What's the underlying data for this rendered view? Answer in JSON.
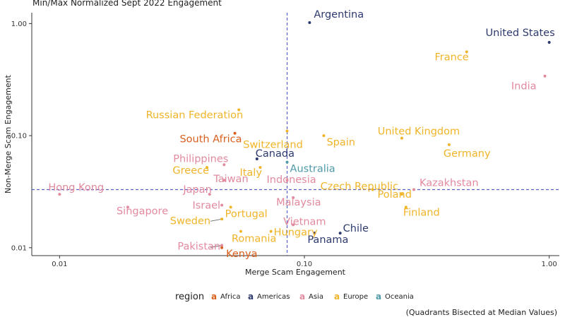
{
  "chart_data": {
    "type": "scatter",
    "title": "Min/Max Normalized Sept 2022 Engagement",
    "xlabel": "Merge Scam Engagement",
    "ylabel": "Non-Merge Scam Engagement",
    "x_scale": "log",
    "y_scale": "log",
    "xlim": [
      0.0077,
      1.1
    ],
    "ylim": [
      0.0085,
      1.25
    ],
    "x_ticks": [
      {
        "value": 0.01,
        "label": "0.01"
      },
      {
        "value": 0.1,
        "label": "0.10"
      },
      {
        "value": 1.0,
        "label": "1.00"
      }
    ],
    "y_ticks": [
      {
        "value": 0.01,
        "label": "0.01"
      },
      {
        "value": 0.1,
        "label": "0.10"
      },
      {
        "value": 1.0,
        "label": "1.00"
      }
    ],
    "median_x": 0.085,
    "median_y": 0.033,
    "grid": false,
    "legend": {
      "title": "region",
      "position": "bottom",
      "items": [
        {
          "name": "Africa",
          "color": "#d95f1d"
        },
        {
          "name": "Americas",
          "color": "#2e3a6e"
        },
        {
          "name": "Asia",
          "color": "#e28a9e"
        },
        {
          "name": "Europe",
          "color": "#f0b429"
        },
        {
          "name": "Oceania",
          "color": "#4f9aa8"
        }
      ]
    },
    "caption": "(Quadrants Bisected at Median Values)",
    "points": [
      {
        "label": "Argentina",
        "region": "Americas",
        "x": 0.105,
        "y": 1.02
      },
      {
        "label": "United States",
        "region": "Americas",
        "x": 1.0,
        "y": 0.68
      },
      {
        "label": "France",
        "region": "Europe",
        "x": 0.46,
        "y": 0.56
      },
      {
        "label": "India",
        "region": "Asia",
        "x": 0.96,
        "y": 0.34
      },
      {
        "label": "Russian Federation",
        "region": "Europe",
        "x": 0.054,
        "y": 0.17
      },
      {
        "label": "Switzerland",
        "region": "Europe",
        "x": 0.085,
        "y": 0.11
      },
      {
        "label": "South Africa",
        "region": "Africa",
        "x": 0.052,
        "y": 0.105
      },
      {
        "label": "United Kingdom",
        "region": "Europe",
        "x": 0.25,
        "y": 0.095
      },
      {
        "label": "Spain",
        "region": "Europe",
        "x": 0.12,
        "y": 0.1
      },
      {
        "label": "Germany",
        "region": "Europe",
        "x": 0.39,
        "y": 0.083
      },
      {
        "label": "Canada",
        "region": "Americas",
        "x": 0.064,
        "y": 0.062
      },
      {
        "label": "Philippines",
        "region": "Asia",
        "x": 0.047,
        "y": 0.055
      },
      {
        "label": "Italy",
        "region": "Europe",
        "x": 0.066,
        "y": 0.052
      },
      {
        "label": "Australia",
        "region": "Oceania",
        "x": 0.085,
        "y": 0.058
      },
      {
        "label": "Greece",
        "region": "Europe",
        "x": 0.04,
        "y": 0.052
      },
      {
        "label": "Taiwan",
        "region": "Asia",
        "x": 0.047,
        "y": 0.04
      },
      {
        "label": "Hong Kong",
        "region": "Asia",
        "x": 0.01,
        "y": 0.03
      },
      {
        "label": "Indonesia",
        "region": "Asia",
        "x": 0.085,
        "y": 0.04
      },
      {
        "label": "Czech Republic",
        "region": "Europe",
        "x": 0.19,
        "y": 0.033
      },
      {
        "label": "Kazakhstan",
        "region": "Asia",
        "x": 0.28,
        "y": 0.033
      },
      {
        "label": "Japan",
        "region": "Asia",
        "x": 0.041,
        "y": 0.03
      },
      {
        "label": "Malaysia",
        "region": "Asia",
        "x": 0.09,
        "y": 0.028
      },
      {
        "label": "Poland",
        "region": "Europe",
        "x": 0.25,
        "y": 0.03
      },
      {
        "label": "Singapore",
        "region": "Asia",
        "x": 0.019,
        "y": 0.023
      },
      {
        "label": "Israel",
        "region": "Asia",
        "x": 0.046,
        "y": 0.024
      },
      {
        "label": "Portugal",
        "region": "Europe",
        "x": 0.05,
        "y": 0.023
      },
      {
        "label": "Finland",
        "region": "Europe",
        "x": 0.26,
        "y": 0.023
      },
      {
        "label": "Sweden",
        "region": "Europe",
        "x": 0.046,
        "y": 0.018
      },
      {
        "label": "Vietnam",
        "region": "Asia",
        "x": 0.09,
        "y": 0.016
      },
      {
        "label": "Chile",
        "region": "Americas",
        "x": 0.14,
        "y": 0.0135
      },
      {
        "label": "Hungary",
        "region": "Europe",
        "x": 0.073,
        "y": 0.014
      },
      {
        "label": "Romania",
        "region": "Europe",
        "x": 0.055,
        "y": 0.014
      },
      {
        "label": "Panama",
        "region": "Americas",
        "x": 0.11,
        "y": 0.0135
      },
      {
        "label": "Pakistan",
        "region": "Asia",
        "x": 0.046,
        "y": 0.0105
      },
      {
        "label": "Kenya",
        "region": "Africa",
        "x": 0.046,
        "y": 0.01
      }
    ]
  }
}
